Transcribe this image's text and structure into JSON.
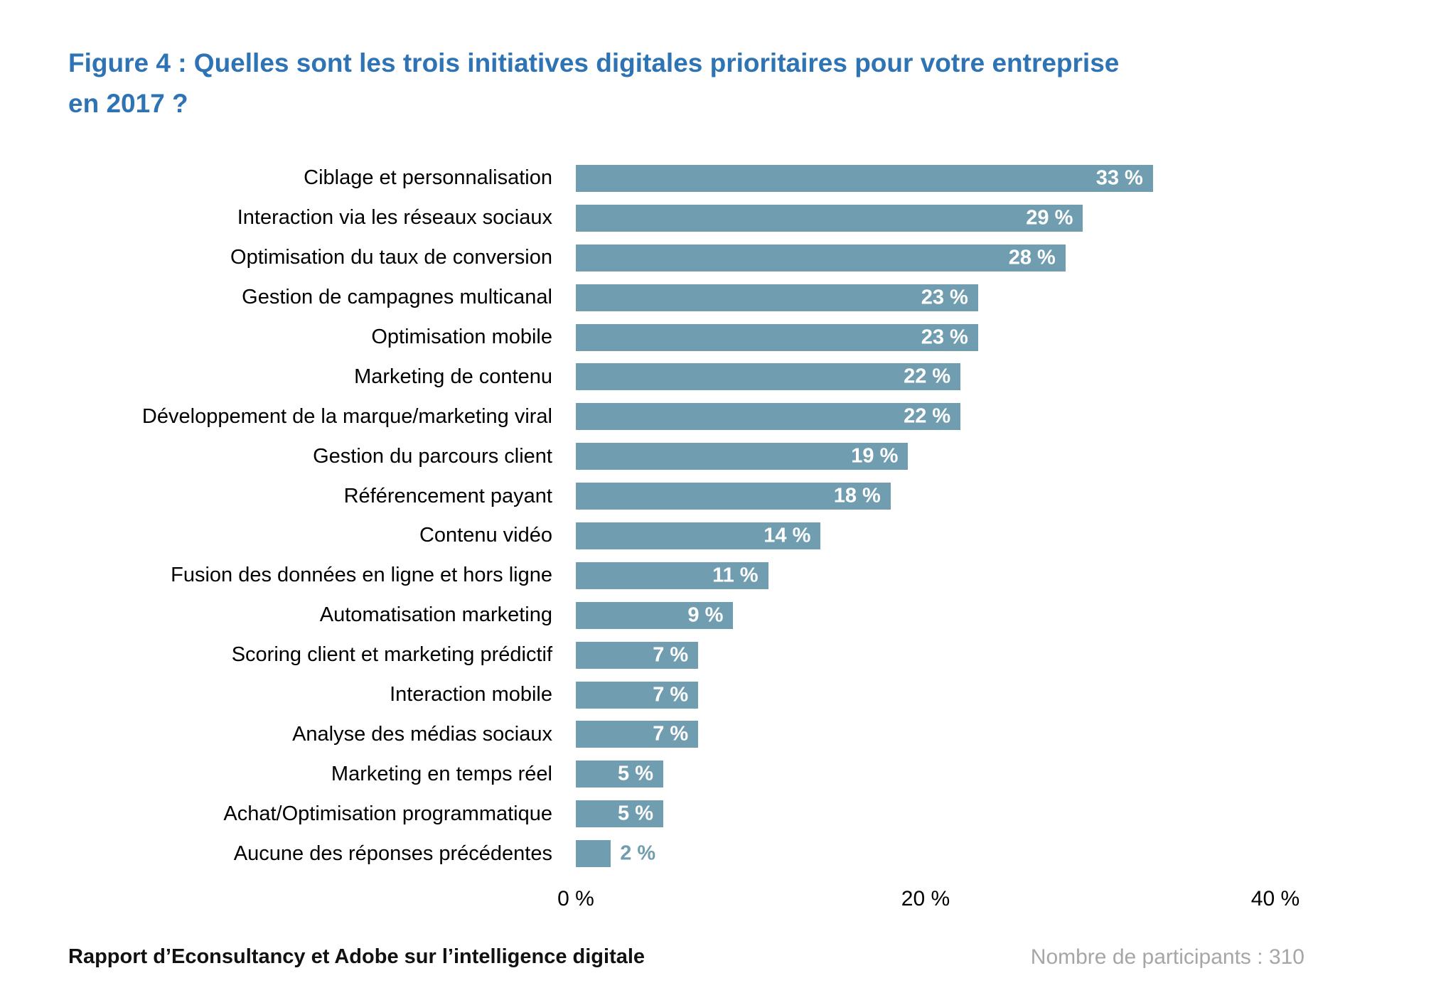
{
  "title": "Figure 4 : Quelles sont les trois initiatives digitales prioritaires pour votre entreprise\nen 2017 ?",
  "chart_data": {
    "type": "bar",
    "orientation": "horizontal",
    "title": "Figure 4 : Quelles sont les trois initiatives digitales prioritaires pour votre entreprise en 2017 ?",
    "categories": [
      "Ciblage et personnalisation",
      "Interaction via les réseaux sociaux",
      "Optimisation du taux de conversion",
      "Gestion de campagnes multicanal",
      "Optimisation mobile",
      "Marketing de contenu",
      "Développement de la marque/marketing viral",
      "Gestion du parcours client",
      "Référencement payant",
      "Contenu vidéo",
      "Fusion des données en ligne et hors ligne",
      "Automatisation marketing",
      "Scoring client et marketing prédictif",
      "Interaction mobile",
      "Analyse des médias sociaux",
      "Marketing en temps réel",
      "Achat/Optimisation programmatique",
      "Aucune des réponses précédentes"
    ],
    "values": [
      33,
      29,
      28,
      23,
      23,
      22,
      22,
      19,
      18,
      14,
      11,
      9,
      7,
      7,
      7,
      5,
      5,
      2
    ],
    "value_labels": [
      "33 %",
      "29 %",
      "28 %",
      "23 %",
      "23 %",
      "22 %",
      "22 %",
      "19 %",
      "18 %",
      "14 %",
      "11 %",
      "9 %",
      "7 %",
      "7 %",
      "7 %",
      "5 %",
      "5 %",
      "2 %"
    ],
    "xlabel": "",
    "ylabel": "",
    "xlim": [
      0,
      40
    ],
    "x_ticks": {
      "values": [
        0,
        20,
        40
      ],
      "labels": [
        "0 %",
        "20 %",
        "40 %"
      ]
    },
    "grid": false,
    "legend": "none",
    "bar_color": "#709EB0",
    "value_label_color_inside": "#FFFFFF",
    "value_label_color_outside": "#709EB0"
  },
  "footer": {
    "source": "Rapport d’Econsultancy et Adobe sur l’intelligence digitale",
    "participants": "Nombre de participants : 310"
  },
  "colors": {
    "title_blue": "#2E74B5",
    "bar_teal": "#709EB0",
    "footer_muted": "#A6A6A6",
    "background": "#FFFFFF"
  }
}
